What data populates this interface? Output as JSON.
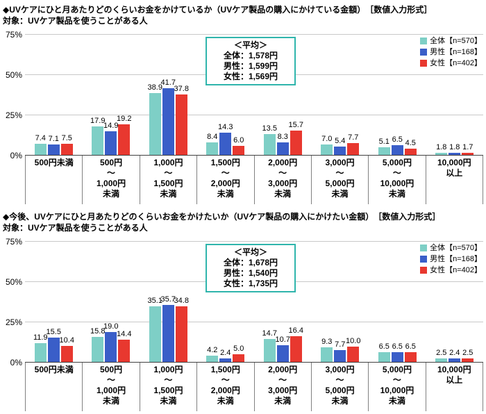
{
  "colors": {
    "overall": "#7ecfc6",
    "male": "#3a5ec8",
    "female": "#e8382f",
    "average_box_border": "#2fb5ac",
    "gridline": "#c9c9c9",
    "axis": "#404040"
  },
  "chart_data": [
    {
      "type": "bar",
      "title": "◆UVケアにひと月あたりどのくらいお金をかけているか（UVケア製品の購入にかけている金額）　［数値入力形式］",
      "subtitle": "対象：UVケア製品を使うことがある人",
      "ylabel": "",
      "ylim": [
        0,
        75
      ],
      "yticks": [
        0,
        25,
        50,
        75
      ],
      "grid": true,
      "legend_position": "top-right",
      "categories": [
        [
          "500円未満"
        ],
        [
          "500円",
          "～",
          "1,000円",
          "未満"
        ],
        [
          "1,000円",
          "～",
          "1,500円",
          "未満"
        ],
        [
          "1,500円",
          "～",
          "2,000円",
          "未満"
        ],
        [
          "2,000円",
          "～",
          "3,000円",
          "未満"
        ],
        [
          "3,000円",
          "～",
          "5,000円",
          "未満"
        ],
        [
          "5,000円",
          "～",
          "10,000円",
          "未満"
        ],
        [
          "10,000円",
          "以上"
        ]
      ],
      "series": [
        {
          "name": "全体【n=570】",
          "color": "#7ecfc6",
          "values": [
            7.4,
            17.9,
            38.9,
            8.4,
            13.5,
            7.0,
            5.1,
            1.8
          ]
        },
        {
          "name": "男性【n=168】",
          "color": "#3a5ec8",
          "values": [
            7.1,
            14.9,
            41.7,
            14.3,
            8.3,
            5.4,
            6.5,
            1.8
          ]
        },
        {
          "name": "女性【n=402】",
          "color": "#e8382f",
          "values": [
            7.5,
            19.2,
            37.8,
            6.0,
            15.7,
            7.7,
            4.5,
            1.7
          ]
        }
      ],
      "average_box": {
        "heading": "＜平均＞",
        "lines": [
          "全体：1,578円",
          "男性：1,599円",
          "女性：1,569円"
        ]
      }
    },
    {
      "type": "bar",
      "title": "◆今後、UVケアにひと月あたりどのくらいお金をかけたいか（UVケア製品の購入にかけたい金額）　［数値入力形式］",
      "subtitle": "対象：UVケア製品を使うことがある人",
      "ylabel": "",
      "ylim": [
        0,
        75
      ],
      "yticks": [
        0,
        25,
        50,
        75
      ],
      "grid": true,
      "legend_position": "top-right",
      "categories": [
        [
          "500円未満"
        ],
        [
          "500円",
          "～",
          "1,000円",
          "未満"
        ],
        [
          "1,000円",
          "～",
          "1,500円",
          "未満"
        ],
        [
          "1,500円",
          "～",
          "2,000円",
          "未満"
        ],
        [
          "2,000円",
          "～",
          "3,000円",
          "未満"
        ],
        [
          "3,000円",
          "～",
          "5,000円",
          "未満"
        ],
        [
          "5,000円",
          "～",
          "10,000円",
          "未満"
        ],
        [
          "10,000円",
          "以上"
        ]
      ],
      "series": [
        {
          "name": "全体【n=570】",
          "color": "#7ecfc6",
          "values": [
            11.9,
            15.8,
            35.1,
            4.2,
            14.7,
            9.3,
            6.5,
            2.5
          ]
        },
        {
          "name": "男性【n=168】",
          "color": "#3a5ec8",
          "values": [
            15.5,
            19.0,
            35.7,
            2.4,
            10.7,
            7.7,
            6.5,
            2.4
          ]
        },
        {
          "name": "女性【n=402】",
          "color": "#e8382f",
          "values": [
            10.4,
            14.4,
            34.8,
            5.0,
            16.4,
            10.0,
            6.5,
            2.5
          ]
        }
      ],
      "average_box": {
        "heading": "＜平均＞",
        "lines": [
          "全体：1,678円",
          "男性：1,540円",
          "女性：1,735円"
        ]
      }
    }
  ]
}
